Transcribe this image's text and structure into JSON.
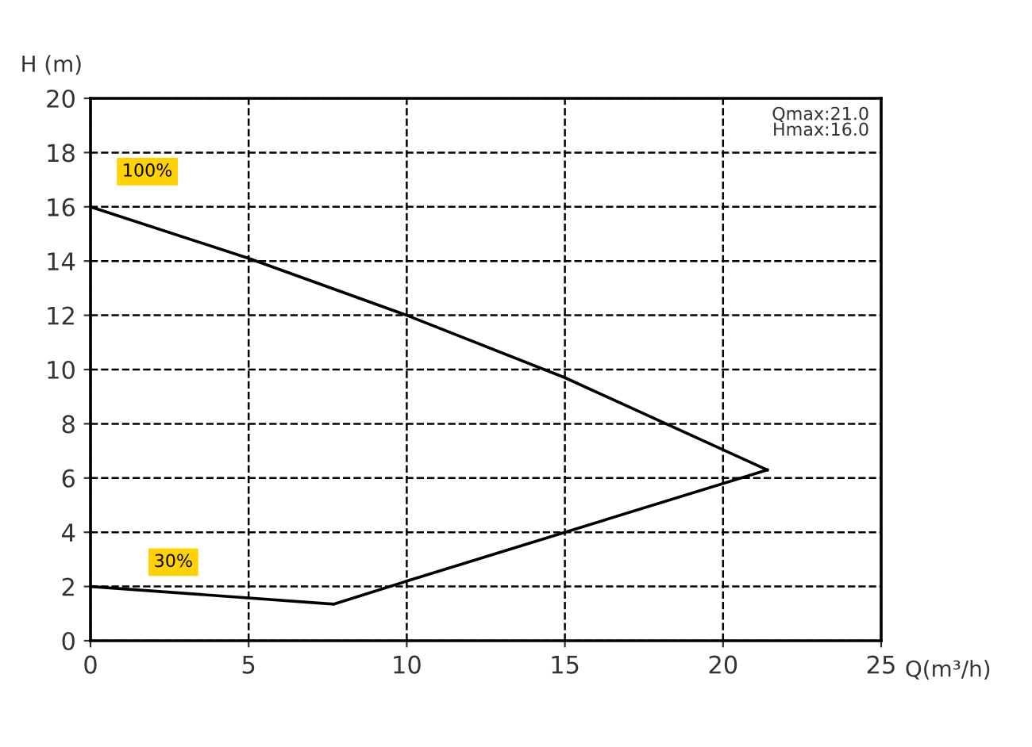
{
  "chart_data": {
    "type": "line",
    "xlabel": "Q(m³/h)",
    "ylabel": "H (m)",
    "series": [
      {
        "name": "100%",
        "color": "#000000",
        "x": [
          0,
          5,
          10,
          15,
          21.4
        ],
        "values": [
          16,
          14.1,
          12,
          9.7,
          6.3
        ]
      },
      {
        "name": "30%",
        "color": "#000000",
        "x": [
          0,
          7.7,
          10,
          15,
          21.4
        ],
        "values": [
          2,
          1.35,
          2.2,
          4,
          6.3
        ]
      }
    ],
    "annotations": [
      "Qmax:21.0\nHmax:16.0"
    ],
    "xlim": [
      0,
      25
    ],
    "ylim": [
      0,
      20
    ],
    "xticks": [
      0,
      5,
      10,
      15,
      20,
      25
    ],
    "yticks": [
      0,
      2,
      4,
      6,
      8,
      10,
      12,
      14,
      16,
      18,
      20
    ],
    "grid": true,
    "line_style": "solid",
    "marker": "none"
  }
}
